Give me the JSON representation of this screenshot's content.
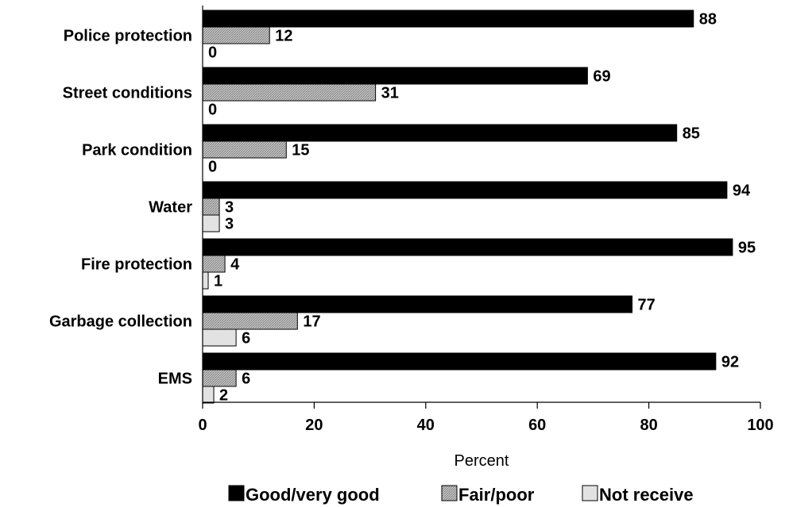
{
  "chart_data": {
    "type": "bar",
    "orientation": "horizontal",
    "categories": [
      "Police protection",
      "Street conditions",
      "Park condition",
      "Water",
      "Fire protection",
      "Garbage collection",
      "EMS"
    ],
    "series": [
      {
        "name": "Good/very good",
        "values": [
          88,
          69,
          85,
          94,
          95,
          77,
          92
        ],
        "color": "#000000"
      },
      {
        "name": "Fair/poor",
        "values": [
          12,
          31,
          15,
          3,
          4,
          17,
          6
        ],
        "color": "#b8b8b8",
        "pattern": "hatched"
      },
      {
        "name": "Not receive",
        "values": [
          0,
          0,
          0,
          3,
          1,
          6,
          2
        ],
        "color": "#e2e2e2"
      }
    ],
    "xlim": [
      0,
      100
    ],
    "xticks": [
      "0",
      "20",
      "40",
      "60",
      "80",
      "100"
    ],
    "xlabel": "Percent",
    "legend_position": "bottom",
    "grid": false
  }
}
